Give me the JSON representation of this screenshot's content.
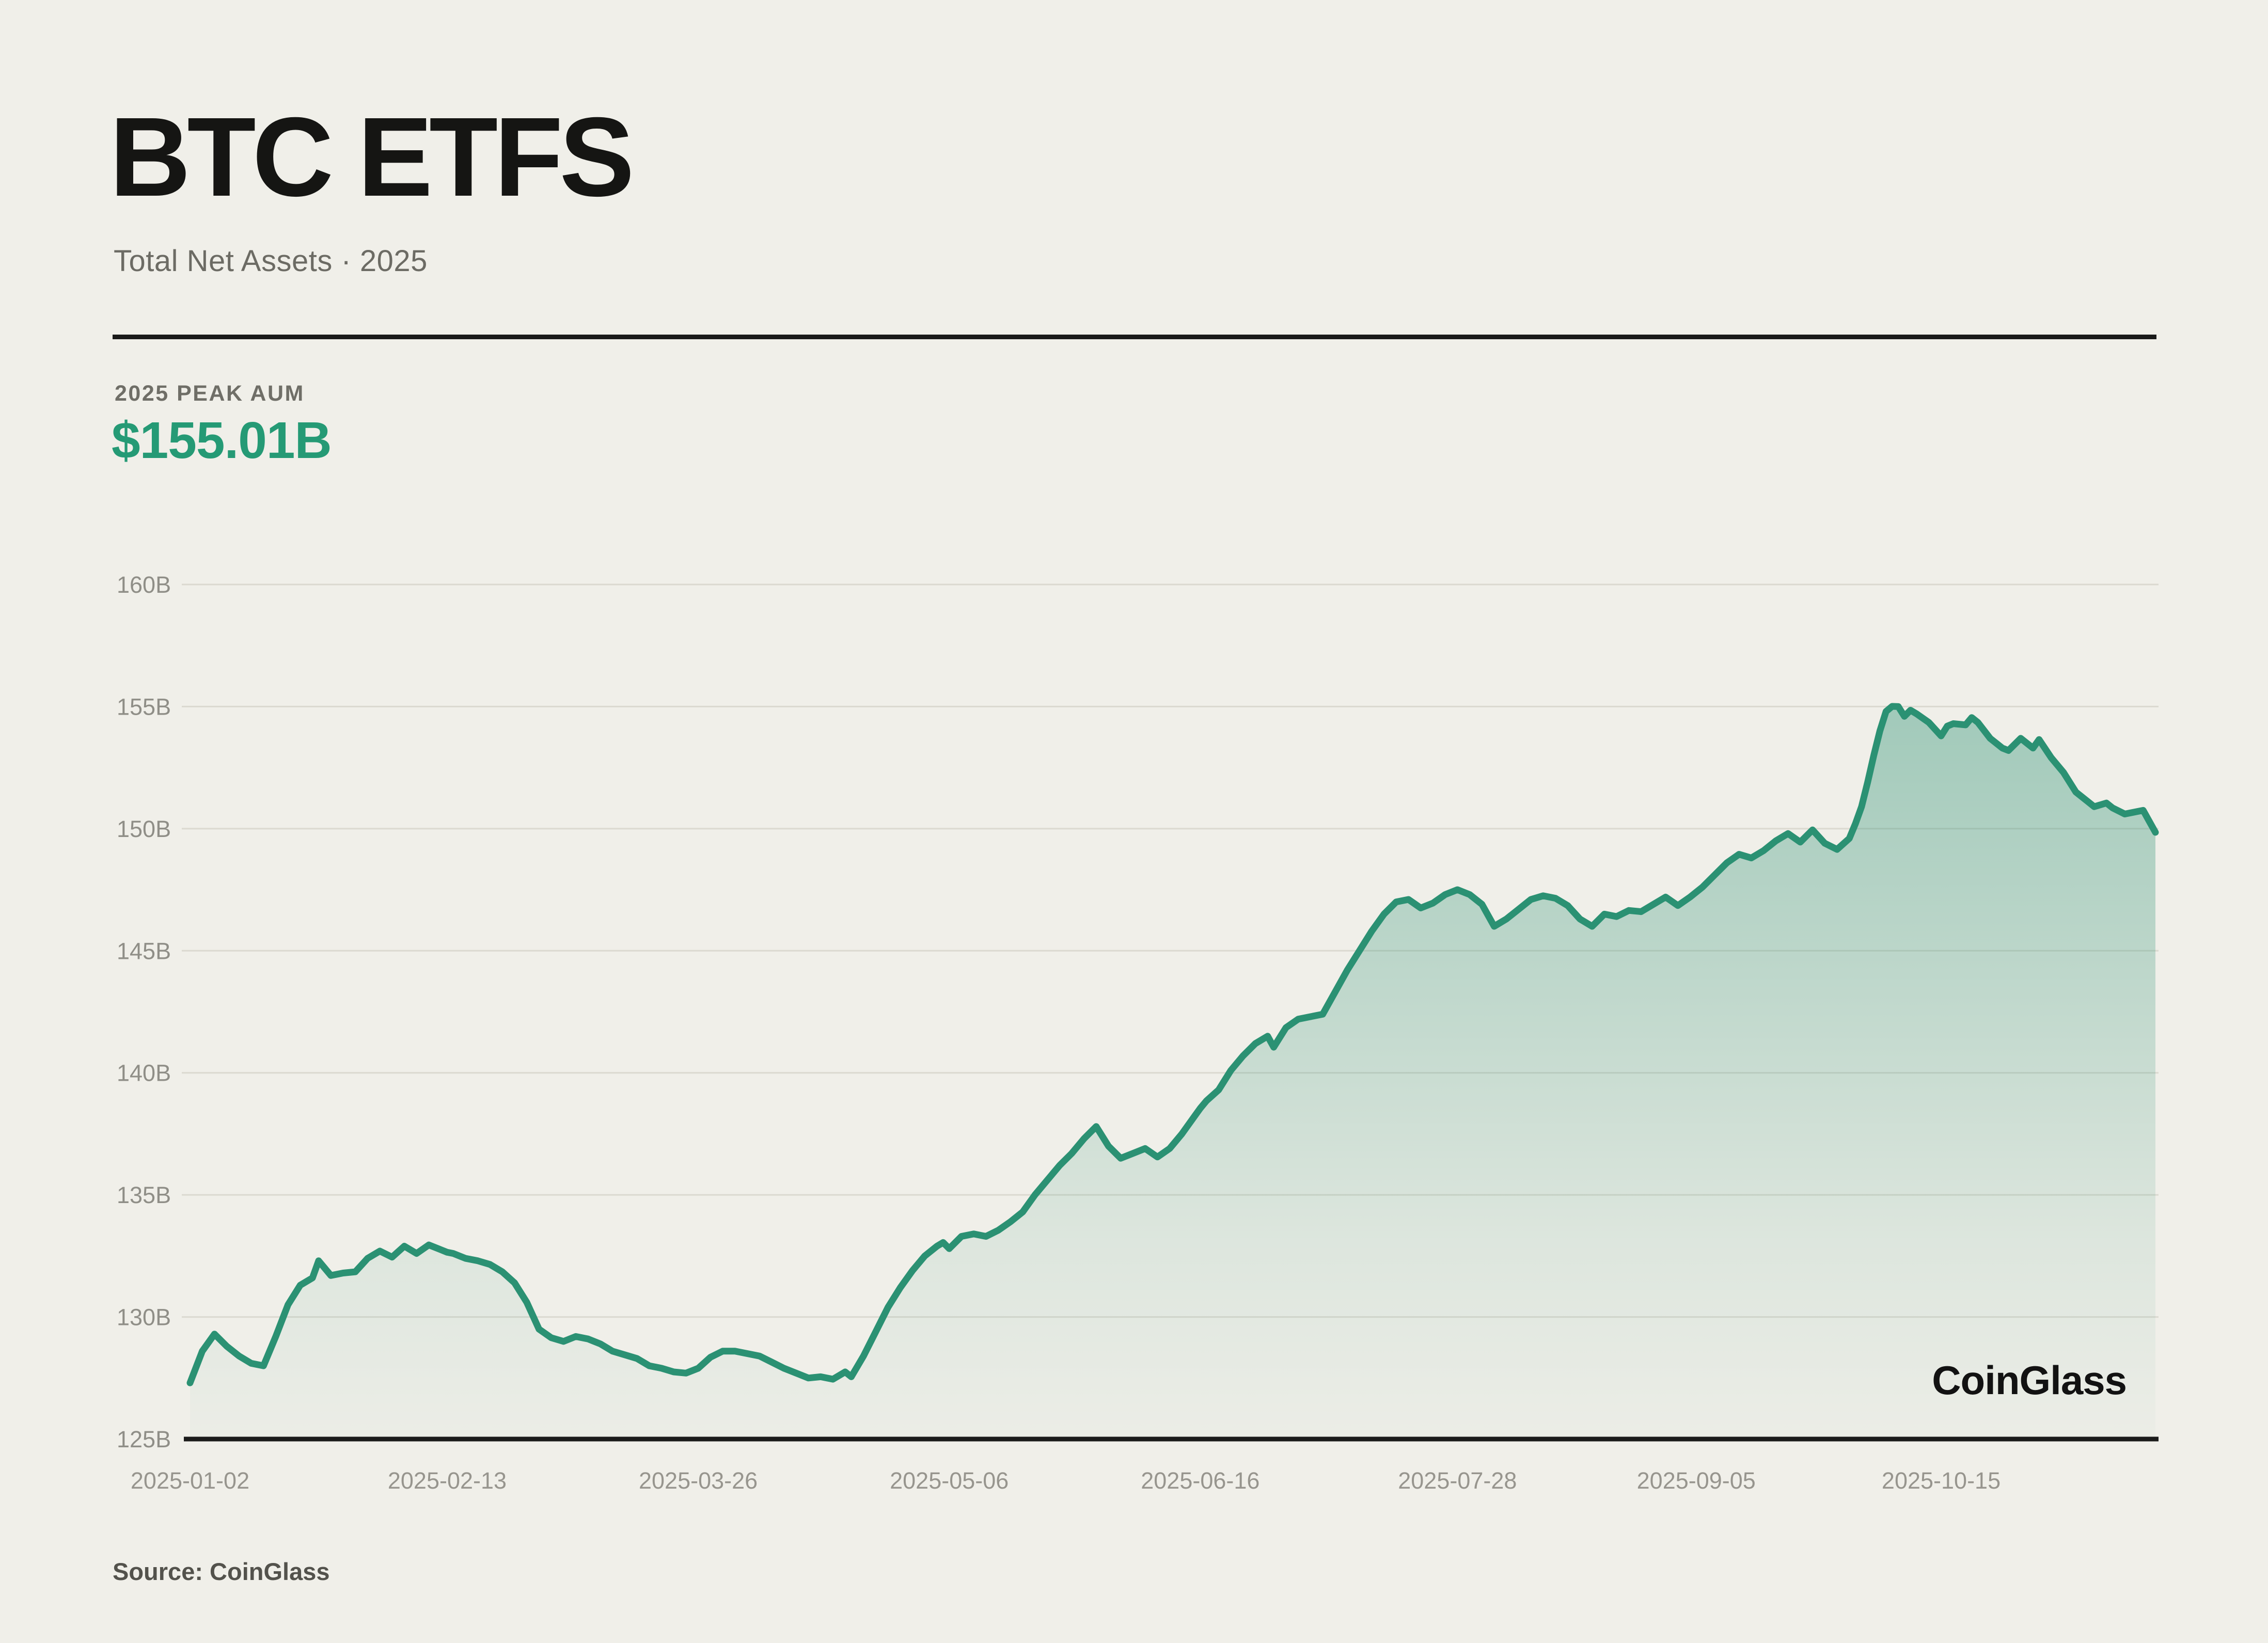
{
  "header": {
    "title": "BTC ETFS",
    "subtitle": "Total Net Assets · 2025"
  },
  "stats": {
    "peak_label": "2025 PEAK AUM",
    "peak_value": "$155.01B"
  },
  "watermark": "CoinGlass",
  "source": "Source: CoinGlass",
  "colors": {
    "background": "#f0efe9",
    "line_green": "#2b9173",
    "accent_green": "#259a75",
    "grid": "#dbd9d0",
    "axis": "#1b1b1a",
    "y_label": "#8f8e87",
    "x_label": "#97958e"
  },
  "chart_data": {
    "type": "area",
    "title": "BTC ETFS Total Net Assets 2025",
    "xlabel": "",
    "ylabel": "",
    "ylim": [
      125,
      160
    ],
    "grid": true,
    "legend": "none",
    "yticks": [
      {
        "value": 160,
        "label": "160B"
      },
      {
        "value": 155,
        "label": "155B"
      },
      {
        "value": 150,
        "label": "150B"
      },
      {
        "value": 145,
        "label": "145B"
      },
      {
        "value": 140,
        "label": "140B"
      },
      {
        "value": 135,
        "label": "135B"
      },
      {
        "value": 130,
        "label": "130B"
      },
      {
        "value": 125,
        "label": "125B"
      }
    ],
    "xticks": [
      "2025-01-02",
      "2025-02-13",
      "2025-03-26",
      "2025-05-06",
      "2025-06-16",
      "2025-07-28",
      "2025-09-05",
      "2025-10-15"
    ],
    "series": [
      {
        "name": "Total Net Assets (USD billions)",
        "points": [
          [
            "2025-01-02",
            127.3
          ],
          [
            "2025-01-04",
            128.6
          ],
          [
            "2025-01-06",
            129.3
          ],
          [
            "2025-01-08",
            128.8
          ],
          [
            "2025-01-10",
            128.4
          ],
          [
            "2025-01-12",
            128.1
          ],
          [
            "2025-01-14",
            128.0
          ],
          [
            "2025-01-16",
            129.2
          ],
          [
            "2025-01-18",
            130.5
          ],
          [
            "2025-01-20",
            131.3
          ],
          [
            "2025-01-22",
            131.6
          ],
          [
            "2025-01-23",
            132.3
          ],
          [
            "2025-01-25",
            131.7
          ],
          [
            "2025-01-27",
            131.8
          ],
          [
            "2025-01-29",
            131.85
          ],
          [
            "2025-01-31",
            132.4
          ],
          [
            "2025-02-02",
            132.7
          ],
          [
            "2025-02-04",
            132.45
          ],
          [
            "2025-02-06",
            132.9
          ],
          [
            "2025-02-08",
            132.6
          ],
          [
            "2025-02-10",
            132.95
          ],
          [
            "2025-02-12",
            132.75
          ],
          [
            "2025-02-13",
            132.65
          ],
          [
            "2025-02-14",
            132.6
          ],
          [
            "2025-02-16",
            132.4
          ],
          [
            "2025-02-18",
            132.3
          ],
          [
            "2025-02-20",
            132.15
          ],
          [
            "2025-02-22",
            131.85
          ],
          [
            "2025-02-24",
            131.4
          ],
          [
            "2025-02-26",
            130.6
          ],
          [
            "2025-02-28",
            129.5
          ],
          [
            "2025-03-02",
            129.15
          ],
          [
            "2025-03-04",
            129.0
          ],
          [
            "2025-03-06",
            129.2
          ],
          [
            "2025-03-08",
            129.1
          ],
          [
            "2025-03-10",
            128.9
          ],
          [
            "2025-03-12",
            128.6
          ],
          [
            "2025-03-14",
            128.45
          ],
          [
            "2025-03-16",
            128.3
          ],
          [
            "2025-03-18",
            128.0
          ],
          [
            "2025-03-20",
            127.9
          ],
          [
            "2025-03-22",
            127.75
          ],
          [
            "2025-03-24",
            127.7
          ],
          [
            "2025-03-26",
            127.9
          ],
          [
            "2025-03-28",
            128.35
          ],
          [
            "2025-03-30",
            128.6
          ],
          [
            "2025-04-01",
            128.6
          ],
          [
            "2025-04-03",
            128.5
          ],
          [
            "2025-04-05",
            128.4
          ],
          [
            "2025-04-07",
            128.15
          ],
          [
            "2025-04-09",
            127.9
          ],
          [
            "2025-04-11",
            127.7
          ],
          [
            "2025-04-13",
            127.5
          ],
          [
            "2025-04-15",
            127.55
          ],
          [
            "2025-04-17",
            127.45
          ],
          [
            "2025-04-19",
            127.75
          ],
          [
            "2025-04-20",
            127.55
          ],
          [
            "2025-04-22",
            128.4
          ],
          [
            "2025-04-24",
            129.4
          ],
          [
            "2025-04-26",
            130.4
          ],
          [
            "2025-04-28",
            131.2
          ],
          [
            "2025-04-30",
            131.9
          ],
          [
            "2025-05-02",
            132.5
          ],
          [
            "2025-05-04",
            132.9
          ],
          [
            "2025-05-05",
            133.05
          ],
          [
            "2025-05-06",
            132.8
          ],
          [
            "2025-05-08",
            133.3
          ],
          [
            "2025-05-10",
            133.4
          ],
          [
            "2025-05-12",
            133.3
          ],
          [
            "2025-05-14",
            133.55
          ],
          [
            "2025-05-16",
            133.9
          ],
          [
            "2025-05-18",
            134.3
          ],
          [
            "2025-05-20",
            135.0
          ],
          [
            "2025-05-22",
            135.6
          ],
          [
            "2025-05-24",
            136.2
          ],
          [
            "2025-05-26",
            136.7
          ],
          [
            "2025-05-28",
            137.3
          ],
          [
            "2025-05-30",
            137.8
          ],
          [
            "2025-06-01",
            137.0
          ],
          [
            "2025-06-03",
            136.5
          ],
          [
            "2025-06-05",
            136.7
          ],
          [
            "2025-06-07",
            136.9
          ],
          [
            "2025-06-09",
            136.55
          ],
          [
            "2025-06-11",
            136.9
          ],
          [
            "2025-06-13",
            137.5
          ],
          [
            "2025-06-15",
            138.2
          ],
          [
            "2025-06-16",
            138.55
          ],
          [
            "2025-06-17",
            138.85
          ],
          [
            "2025-06-19",
            139.3
          ],
          [
            "2025-06-21",
            140.1
          ],
          [
            "2025-06-23",
            140.7
          ],
          [
            "2025-06-25",
            141.2
          ],
          [
            "2025-06-27",
            141.5
          ],
          [
            "2025-06-28",
            141.05
          ],
          [
            "2025-06-30",
            141.85
          ],
          [
            "2025-07-02",
            142.2
          ],
          [
            "2025-07-04",
            142.3
          ],
          [
            "2025-07-06",
            142.4
          ],
          [
            "2025-07-08",
            143.3
          ],
          [
            "2025-07-10",
            144.2
          ],
          [
            "2025-07-12",
            145.0
          ],
          [
            "2025-07-14",
            145.8
          ],
          [
            "2025-07-16",
            146.5
          ],
          [
            "2025-07-18",
            147.0
          ],
          [
            "2025-07-20",
            147.1
          ],
          [
            "2025-07-22",
            146.75
          ],
          [
            "2025-07-24",
            146.95
          ],
          [
            "2025-07-26",
            147.3
          ],
          [
            "2025-07-28",
            147.5
          ],
          [
            "2025-07-30",
            147.3
          ],
          [
            "2025-08-01",
            146.9
          ],
          [
            "2025-08-03",
            146.0
          ],
          [
            "2025-08-05",
            146.3
          ],
          [
            "2025-08-07",
            146.7
          ],
          [
            "2025-08-09",
            147.1
          ],
          [
            "2025-08-11",
            147.25
          ],
          [
            "2025-08-13",
            147.15
          ],
          [
            "2025-08-15",
            146.85
          ],
          [
            "2025-08-17",
            146.3
          ],
          [
            "2025-08-19",
            146.0
          ],
          [
            "2025-08-21",
            146.5
          ],
          [
            "2025-08-23",
            146.4
          ],
          [
            "2025-08-25",
            146.65
          ],
          [
            "2025-08-27",
            146.6
          ],
          [
            "2025-08-29",
            146.9
          ],
          [
            "2025-08-31",
            147.2
          ],
          [
            "2025-09-02",
            146.85
          ],
          [
            "2025-09-04",
            147.2
          ],
          [
            "2025-09-05",
            147.4
          ],
          [
            "2025-09-06",
            147.6
          ],
          [
            "2025-09-08",
            148.1
          ],
          [
            "2025-09-10",
            148.6
          ],
          [
            "2025-09-12",
            148.95
          ],
          [
            "2025-09-14",
            148.8
          ],
          [
            "2025-09-16",
            149.1
          ],
          [
            "2025-09-18",
            149.5
          ],
          [
            "2025-09-20",
            149.8
          ],
          [
            "2025-09-22",
            149.45
          ],
          [
            "2025-09-24",
            149.95
          ],
          [
            "2025-09-26",
            149.4
          ],
          [
            "2025-09-28",
            149.15
          ],
          [
            "2025-09-30",
            149.6
          ],
          [
            "2025-10-01",
            150.2
          ],
          [
            "2025-10-02",
            150.9
          ],
          [
            "2025-10-03",
            151.9
          ],
          [
            "2025-10-04",
            153.0
          ],
          [
            "2025-10-05",
            154.0
          ],
          [
            "2025-10-06",
            154.8
          ],
          [
            "2025-10-07",
            155.01
          ],
          [
            "2025-10-08",
            155.0
          ],
          [
            "2025-10-09",
            154.6
          ],
          [
            "2025-10-10",
            154.85
          ],
          [
            "2025-10-11",
            154.7
          ],
          [
            "2025-10-13",
            154.35
          ],
          [
            "2025-10-15",
            153.8
          ],
          [
            "2025-10-16",
            154.2
          ],
          [
            "2025-10-17",
            154.3
          ],
          [
            "2025-10-19",
            154.25
          ],
          [
            "2025-10-20",
            154.55
          ],
          [
            "2025-10-21",
            154.35
          ],
          [
            "2025-10-23",
            153.7
          ],
          [
            "2025-10-25",
            153.3
          ],
          [
            "2025-10-26",
            153.2
          ],
          [
            "2025-10-28",
            153.7
          ],
          [
            "2025-10-30",
            153.3
          ],
          [
            "2025-10-31",
            153.65
          ],
          [
            "2025-11-02",
            152.9
          ],
          [
            "2025-11-04",
            152.3
          ],
          [
            "2025-11-06",
            151.5
          ],
          [
            "2025-11-08",
            151.1
          ],
          [
            "2025-11-09",
            150.9
          ],
          [
            "2025-11-11",
            151.05
          ],
          [
            "2025-11-12",
            150.85
          ],
          [
            "2025-11-14",
            150.6
          ],
          [
            "2025-11-16",
            150.7
          ],
          [
            "2025-11-17",
            150.75
          ],
          [
            "2025-11-18",
            150.3
          ],
          [
            "2025-11-19",
            149.85
          ]
        ]
      }
    ]
  }
}
